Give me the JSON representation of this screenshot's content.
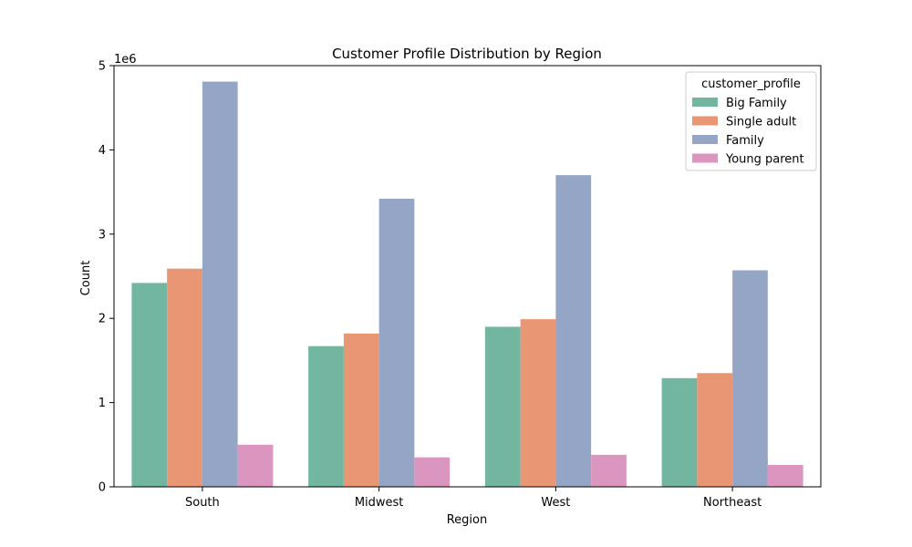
{
  "chart_data": {
    "type": "bar",
    "title": "Customer Profile Distribution by Region",
    "xlabel": "Region",
    "ylabel": "Count",
    "y_scale_label": "1e6",
    "y_multiplier": 1000000,
    "categories": [
      "South",
      "Midwest",
      "West",
      "Northeast"
    ],
    "ylim": [
      0,
      5
    ],
    "y_ticks": [
      0,
      1,
      2,
      3,
      4,
      5
    ],
    "y_tick_labels": [
      "0",
      "1",
      "2",
      "3",
      "4",
      "5"
    ],
    "grid": false,
    "legend": {
      "title": "customer_profile",
      "placement": "top-right"
    },
    "series": [
      {
        "name": "Big Family",
        "color": "#72b6a1",
        "values": [
          2.42,
          1.67,
          1.9,
          1.29
        ]
      },
      {
        "name": "Single adult",
        "color": "#e99675",
        "values": [
          2.59,
          1.82,
          1.99,
          1.35
        ]
      },
      {
        "name": "Family",
        "color": "#95a5c6",
        "values": [
          4.81,
          3.42,
          3.7,
          2.57
        ]
      },
      {
        "name": "Young parent",
        "color": "#db96c0",
        "values": [
          0.5,
          0.35,
          0.38,
          0.26
        ]
      }
    ]
  }
}
